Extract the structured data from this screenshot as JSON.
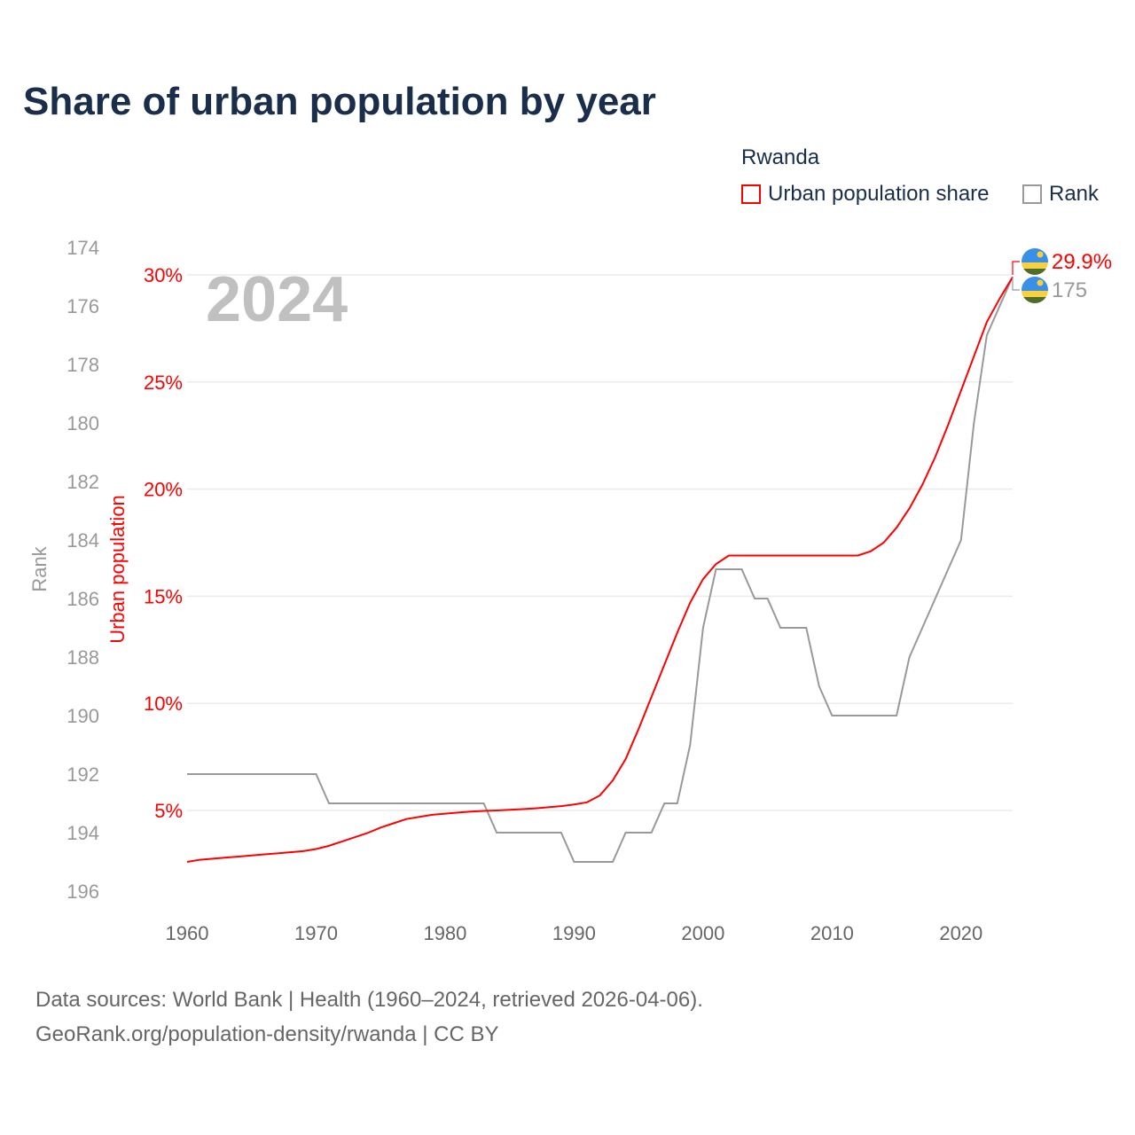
{
  "chart_data": {
    "type": "line",
    "title": "Share of urban population by year",
    "year_label": "2024",
    "legend": {
      "title": "Rwanda",
      "placement": "top-right",
      "entries": [
        "Urban population share",
        "Rank"
      ]
    },
    "x": [
      1960,
      1961,
      1962,
      1963,
      1964,
      1965,
      1966,
      1967,
      1968,
      1969,
      1970,
      1971,
      1972,
      1973,
      1974,
      1975,
      1976,
      1977,
      1978,
      1979,
      1980,
      1981,
      1982,
      1983,
      1984,
      1985,
      1986,
      1987,
      1988,
      1989,
      1990,
      1991,
      1992,
      1993,
      1994,
      1995,
      1996,
      1997,
      1998,
      1999,
      2000,
      2001,
      2002,
      2003,
      2004,
      2005,
      2006,
      2007,
      2008,
      2009,
      2010,
      2011,
      2012,
      2013,
      2014,
      2015,
      2016,
      2017,
      2018,
      2019,
      2020,
      2021,
      2022,
      2023,
      2024
    ],
    "xticks": [
      1960,
      1970,
      1980,
      1990,
      2000,
      2010,
      2020
    ],
    "xlim": [
      1960,
      2024
    ],
    "series": [
      {
        "name": "Urban population share",
        "axis": "left",
        "color": "#ff0000",
        "unit": "%",
        "values": [
          2.6,
          2.7,
          2.75,
          2.8,
          2.85,
          2.9,
          2.95,
          3.0,
          3.05,
          3.1,
          3.2,
          3.35,
          3.55,
          3.75,
          3.95,
          4.2,
          4.4,
          4.6,
          4.7,
          4.8,
          4.85,
          4.9,
          4.95,
          4.98,
          5.0,
          5.03,
          5.06,
          5.1,
          5.15,
          5.2,
          5.28,
          5.38,
          5.7,
          6.4,
          7.4,
          8.8,
          10.3,
          11.8,
          13.3,
          14.7,
          15.8,
          16.5,
          16.9,
          16.9,
          16.9,
          16.9,
          16.9,
          16.9,
          16.9,
          16.9,
          16.9,
          16.9,
          16.9,
          17.1,
          17.5,
          18.2,
          19.1,
          20.2,
          21.5,
          23.0,
          24.6,
          26.2,
          27.8,
          28.9,
          29.9
        ]
      },
      {
        "name": "Rank",
        "axis": "right-inverted",
        "color": "#999999",
        "values": [
          192,
          192,
          192,
          192,
          192,
          192,
          192,
          192,
          192,
          192,
          192,
          193,
          193,
          193,
          193,
          193,
          193,
          193,
          193,
          193,
          193,
          193,
          193,
          193,
          194,
          194,
          194,
          194,
          194,
          194,
          195,
          195,
          195,
          195,
          194,
          194,
          194,
          193,
          193,
          191,
          187,
          185,
          185,
          185,
          186,
          186,
          187,
          187,
          187,
          189,
          190,
          190,
          190,
          190,
          190,
          190,
          188,
          187,
          186,
          185,
          184,
          180,
          177,
          176,
          175
        ]
      }
    ],
    "ylabel_left": "Urban population",
    "yticks_left": [
      "5%",
      "10%",
      "15%",
      "20%",
      "25%",
      "30%"
    ],
    "yticks_left_values": [
      5,
      10,
      15,
      20,
      25,
      30
    ],
    "ylabel_rank": "Rank",
    "yticks_rank": [
      174,
      176,
      178,
      180,
      182,
      184,
      186,
      188,
      190,
      192,
      194,
      196
    ],
    "ylim_left": [
      0,
      30
    ],
    "ylim_rank": [
      174,
      196
    ],
    "end_labels": {
      "urban": "29.9%",
      "rank": "175"
    },
    "grid": true,
    "flag": "rwanda-flag"
  },
  "footer": {
    "line1": "Data sources: World Bank | Health (1960–2024, retrieved 2026-04-06).",
    "line2": "GeoRank.org/population-density/rwanda | CC BY"
  }
}
